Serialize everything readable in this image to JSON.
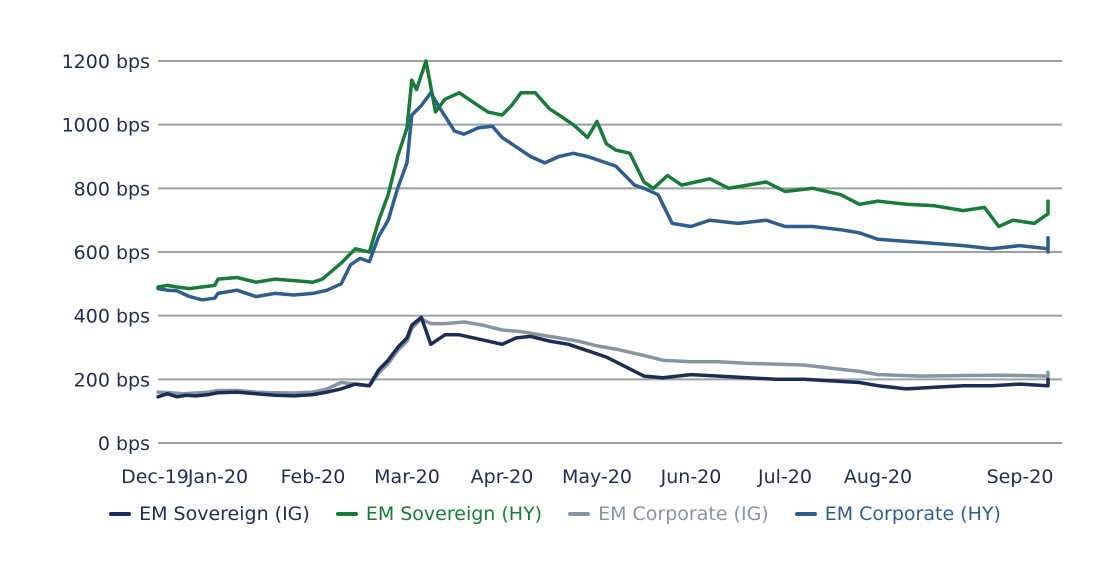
{
  "chart_data": {
    "type": "line",
    "title": "",
    "xlabel": "",
    "ylabel": "",
    "ylim": [
      0,
      1200
    ],
    "y_unit_suffix": " bps",
    "yticks": [
      0,
      200,
      400,
      600,
      800,
      1000,
      1200
    ],
    "ytick_labels": [
      "0 bps",
      "200 bps",
      "400 bps",
      "600 bps",
      "800 bps",
      "1000 bps",
      "1200 bps"
    ],
    "grid": true,
    "legend_position": "bottom",
    "x_unit": "month index (0 = Dec-19)",
    "xticks": [
      0,
      1,
      2,
      3,
      4,
      5,
      6,
      7,
      8,
      9
    ],
    "xtick_labels": [
      "Dec-19",
      "Jan-20",
      "Feb-20",
      "Mar-20",
      "Apr-20",
      "May-20",
      "Jun-20",
      "Jul-20",
      "Aug-20",
      "Sep-20"
    ],
    "series": [
      {
        "name": "EM Sovereign (IG)",
        "color": "#1c2c54",
        "x": [
          0,
          0.15,
          0.3,
          0.45,
          0.6,
          0.8,
          1.0,
          1.2,
          1.4,
          1.6,
          1.8,
          2.0,
          2.15,
          2.3,
          2.45,
          2.6,
          2.7,
          2.8,
          2.9,
          3.0,
          3.05,
          3.15,
          3.25,
          3.4,
          3.55,
          3.7,
          3.85,
          4.0,
          4.15,
          4.3,
          4.5,
          4.7,
          4.9,
          5.0,
          5.1,
          5.2,
          5.3,
          5.5,
          5.7,
          6.0,
          6.3,
          6.6,
          6.9,
          7.2,
          7.5,
          7.8,
          8.0,
          8.2,
          8.4,
          8.6,
          8.8,
          9.0,
          9.2,
          9.4,
          9.6,
          9.8,
          10.0,
          10.2,
          10.3
        ],
        "values": [
          145,
          155,
          145,
          150,
          148,
          152,
          158,
          160,
          155,
          150,
          148,
          152,
          160,
          170,
          185,
          180,
          230,
          260,
          300,
          330,
          370,
          395,
          310,
          340,
          340,
          330,
          320,
          310,
          330,
          335,
          320,
          310,
          290,
          280,
          270,
          255,
          240,
          210,
          205,
          215,
          210,
          205,
          200,
          200,
          195,
          190,
          180,
          170,
          175,
          180,
          180,
          185,
          180,
          185,
          190,
          200,
          200,
          195,
          192
        ]
      },
      {
        "name": "EM Sovereign (HY)",
        "color": "#197a3a",
        "x": [
          0,
          0.15,
          0.3,
          0.5,
          0.7,
          0.9,
          1.0,
          1.2,
          1.4,
          1.6,
          1.8,
          2.0,
          2.1,
          2.2,
          2.3,
          2.45,
          2.6,
          2.7,
          2.8,
          2.9,
          3.0,
          3.05,
          3.1,
          3.2,
          3.3,
          3.4,
          3.55,
          3.7,
          3.85,
          4.0,
          4.1,
          4.2,
          4.35,
          4.5,
          4.6,
          4.75,
          4.9,
          5.0,
          5.1,
          5.2,
          5.35,
          5.5,
          5.6,
          5.75,
          5.9,
          6.05,
          6.2,
          6.4,
          6.6,
          6.8,
          7.0,
          7.3,
          7.6,
          7.8,
          8.0,
          8.2,
          8.4,
          8.6,
          8.75,
          8.85,
          8.95,
          9.1,
          9.3,
          9.5,
          9.7,
          9.9,
          10.1,
          10.25,
          10.35
        ],
        "values": [
          490,
          495,
          490,
          485,
          490,
          495,
          515,
          520,
          505,
          515,
          510,
          505,
          515,
          540,
          565,
          610,
          600,
          700,
          780,
          900,
          990,
          1140,
          1110,
          1200,
          1040,
          1080,
          1100,
          1070,
          1040,
          1030,
          1060,
          1100,
          1100,
          1050,
          1030,
          1000,
          960,
          1010,
          940,
          920,
          910,
          820,
          800,
          840,
          810,
          820,
          830,
          800,
          810,
          820,
          790,
          800,
          780,
          750,
          760,
          750,
          745,
          730,
          740,
          680,
          700,
          690,
          720,
          750,
          760,
          750,
          755,
          750,
          748
        ]
      },
      {
        "name": "EM Corporate (IG)",
        "color": "#8795a3",
        "x": [
          0,
          0.2,
          0.4,
          0.6,
          0.8,
          1.0,
          1.2,
          1.4,
          1.6,
          1.8,
          2.0,
          2.15,
          2.3,
          2.45,
          2.6,
          2.7,
          2.8,
          2.9,
          3.0,
          3.05,
          3.15,
          3.25,
          3.4,
          3.6,
          3.8,
          4.0,
          4.2,
          4.4,
          4.6,
          4.8,
          5.0,
          5.2,
          5.35,
          5.5,
          5.7,
          6.0,
          6.3,
          6.6,
          6.9,
          7.2,
          7.5,
          7.8,
          8.0,
          8.3,
          8.6,
          8.9,
          9.2,
          9.5,
          9.8,
          10.0,
          10.2,
          10.3
        ],
        "values": [
          160,
          158,
          155,
          157,
          160,
          165,
          165,
          160,
          158,
          157,
          160,
          170,
          190,
          185,
          180,
          220,
          250,
          290,
          320,
          360,
          390,
          375,
          375,
          380,
          370,
          355,
          350,
          340,
          330,
          320,
          305,
          295,
          285,
          275,
          260,
          255,
          255,
          250,
          248,
          245,
          235,
          225,
          215,
          210,
          212,
          213,
          210,
          210,
          212,
          220,
          222,
          220
        ]
      },
      {
        "name": "EM Corporate (HY)",
        "color": "#2f5d8f",
        "x": [
          0,
          0.15,
          0.3,
          0.5,
          0.7,
          0.9,
          1.0,
          1.2,
          1.4,
          1.6,
          1.8,
          2.0,
          2.15,
          2.3,
          2.4,
          2.5,
          2.6,
          2.7,
          2.8,
          2.9,
          3.0,
          3.05,
          3.15,
          3.25,
          3.35,
          3.5,
          3.6,
          3.75,
          3.9,
          4.0,
          4.15,
          4.3,
          4.45,
          4.6,
          4.75,
          4.9,
          5.0,
          5.1,
          5.2,
          5.3,
          5.4,
          5.5,
          5.65,
          5.8,
          6.0,
          6.2,
          6.5,
          6.8,
          7.0,
          7.3,
          7.6,
          7.8,
          8.0,
          8.3,
          8.6,
          8.8,
          9.0,
          9.2,
          9.4,
          9.6,
          9.8,
          10.0,
          10.2,
          10.3,
          10.35
        ],
        "values": [
          485,
          480,
          478,
          460,
          450,
          455,
          470,
          480,
          460,
          470,
          465,
          470,
          480,
          500,
          560,
          580,
          570,
          650,
          700,
          800,
          880,
          1030,
          1060,
          1100,
          1050,
          980,
          970,
          990,
          995,
          960,
          930,
          900,
          880,
          900,
          910,
          900,
          890,
          880,
          870,
          840,
          810,
          800,
          780,
          690,
          680,
          700,
          690,
          700,
          680,
          680,
          670,
          660,
          640,
          630,
          620,
          610,
          620,
          610,
          600,
          600,
          610,
          630,
          645,
          640,
          625
        ]
      }
    ]
  },
  "legend": {
    "items": [
      {
        "label": "EM Sovereign (IG)",
        "color": "#1c2c54"
      },
      {
        "label": "EM Sovereign (HY)",
        "color": "#197a3a"
      },
      {
        "label": "EM Corporate (IG)",
        "color": "#8795a3"
      },
      {
        "label": "EM Corporate (HY)",
        "color": "#2f5d8f"
      }
    ]
  }
}
